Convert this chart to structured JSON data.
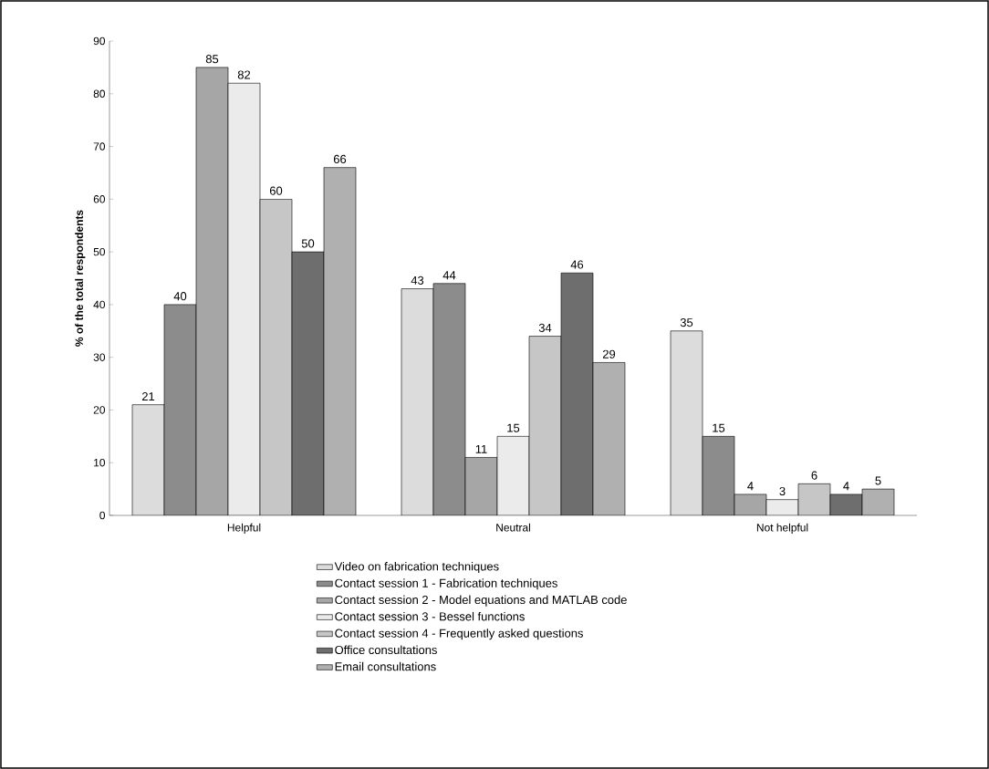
{
  "chart_data": {
    "type": "bar",
    "ylabel": "% of the total respondents",
    "categories": [
      "Helpful",
      "Neutral",
      "Not helpful"
    ],
    "series": [
      {
        "name": "Video on fabrication techniques",
        "color": "#dcdcdc",
        "values": [
          21,
          43,
          35
        ]
      },
      {
        "name": "Contact session 1 - Fabrication techniques",
        "color": "#8c8c8c",
        "values": [
          40,
          44,
          15
        ]
      },
      {
        "name": "Contact session 2 - Model equations and MATLAB code",
        "color": "#a6a6a6",
        "values": [
          85,
          11,
          4
        ]
      },
      {
        "name": "Contact session 3 - Bessel functions",
        "color": "#ebebeb",
        "values": [
          82,
          15,
          3
        ]
      },
      {
        "name": "Contact session 4 - Frequently asked questions",
        "color": "#c6c6c6",
        "values": [
          60,
          34,
          6
        ]
      },
      {
        "name": "Office consultations",
        "color": "#6e6e6e",
        "values": [
          50,
          46,
          4
        ]
      },
      {
        "name": "Email consultations",
        "color": "#b0b0b0",
        "values": [
          66,
          29,
          5
        ]
      }
    ],
    "ylim": [
      0,
      90
    ],
    "yticks": [
      0,
      10,
      20,
      30,
      40,
      50,
      60,
      70,
      80,
      90
    ],
    "data_labels": true,
    "legend": "bottom",
    "grid": false
  }
}
